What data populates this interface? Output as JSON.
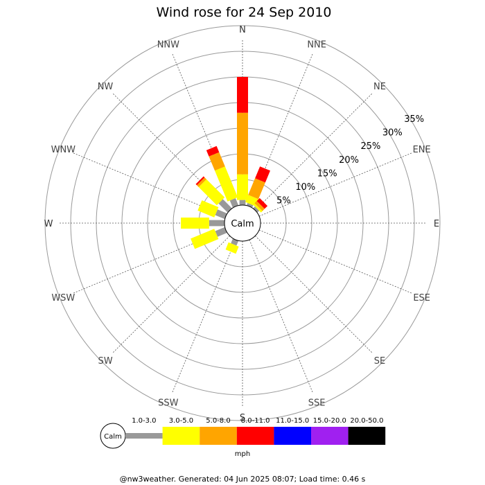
{
  "chart_data": {
    "type": "windrose",
    "title": "Wind rose for 24 Sep 2010",
    "directions": [
      "N",
      "NNE",
      "NE",
      "ENE",
      "E",
      "ESE",
      "SE",
      "SSE",
      "S",
      "SSW",
      "SW",
      "WSW",
      "W",
      "WNW",
      "NW",
      "NNW"
    ],
    "ring_labels": [
      "5%",
      "10%",
      "15%",
      "20%",
      "25%",
      "30%",
      "35%"
    ],
    "ring_values": [
      5,
      10,
      15,
      20,
      25,
      30,
      35
    ],
    "calm_label": "Calm",
    "speed_bins": [
      {
        "label": "1.0-3.0",
        "color": "#999999"
      },
      {
        "label": "3.0-5.0",
        "color": "#ffff00"
      },
      {
        "label": "5.0-8.0",
        "color": "#ffa500"
      },
      {
        "label": "8.0-11.0",
        "color": "#ff0000"
      },
      {
        "label": "11.0-15.0",
        "color": "#0000ff"
      },
      {
        "label": "15.0-20.0",
        "color": "#a020f0"
      },
      {
        "label": "20.0-50.0",
        "color": "#000000"
      }
    ],
    "units": "mph",
    "segments": {
      "N": [
        1.0,
        5.0,
        12.0,
        7.0,
        0,
        0,
        0
      ],
      "NNE": [
        0.5,
        1.5,
        3.5,
        2.5,
        0,
        0,
        0
      ],
      "NE": [
        0.5,
        0.4,
        0.6,
        0.8,
        0,
        0,
        0
      ],
      "ENE": [
        0,
        0,
        0,
        0,
        0,
        0,
        0
      ],
      "E": [
        0,
        0,
        0,
        0,
        0,
        0,
        0
      ],
      "ESE": [
        0,
        0,
        0,
        0,
        0,
        0,
        0
      ],
      "SE": [
        0,
        0,
        0,
        0,
        0,
        0,
        0
      ],
      "SSE": [
        0,
        0,
        0,
        0,
        0,
        0,
        0
      ],
      "S": [
        0,
        0,
        0,
        0,
        0,
        0,
        0
      ],
      "SSW": [
        1.0,
        1.5,
        0,
        0,
        0,
        0,
        0
      ],
      "SW": [
        0,
        0,
        0,
        0,
        0,
        0,
        0
      ],
      "WSW": [
        2.0,
        5.0,
        0,
        0,
        0,
        0,
        0
      ],
      "W": [
        3.0,
        5.5,
        0,
        0,
        0,
        0,
        0
      ],
      "WNW": [
        2.0,
        3.5,
        0,
        0,
        0,
        0,
        0
      ],
      "NW": [
        2.5,
        5.0,
        0.5,
        0.3,
        0,
        0,
        0
      ],
      "NNW": [
        1.5,
        6.5,
        3.0,
        1.3,
        0,
        0,
        0
      ]
    }
  },
  "footer": "@nw3weather. Generated: 04 Jun 2025 08:07; Load time: 0.46 s"
}
